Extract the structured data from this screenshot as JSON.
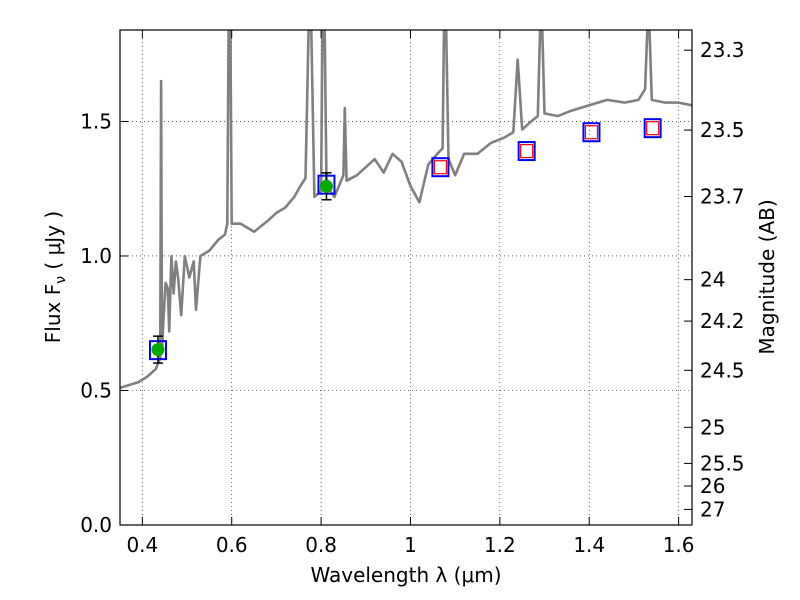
{
  "chart_data": {
    "type": "line",
    "title": "",
    "xlabel": "Wavelength  λ (μm)",
    "ylabel": "Flux  F",
    "ylabel_sub": "ν",
    "ylabel_unit": " ( μJy )",
    "y2label": "Magnitude (AB)",
    "xlim": [
      0.35,
      1.63
    ],
    "ylim": [
      0.0,
      1.84
    ],
    "grid": true,
    "x_ticks": [
      {
        "value": 0.4,
        "label": "0.4"
      },
      {
        "value": 0.6,
        "label": "0.6"
      },
      {
        "value": 0.8,
        "label": "0.8"
      },
      {
        "value": 1.0,
        "label": "1"
      },
      {
        "value": 1.2,
        "label": "1.2"
      },
      {
        "value": 1.4,
        "label": "1.4"
      },
      {
        "value": 1.6,
        "label": "1.6"
      }
    ],
    "y_ticks": [
      {
        "value": 0.0,
        "label": "0.0"
      },
      {
        "value": 0.5,
        "label": "0.5"
      },
      {
        "value": 1.0,
        "label": "1.0"
      },
      {
        "value": 1.5,
        "label": "1.5"
      }
    ],
    "y2_ticks": [
      {
        "flux": 1.765,
        "label": "23.3"
      },
      {
        "flux": 1.468,
        "label": "23.5"
      },
      {
        "flux": 1.221,
        "label": "23.7"
      },
      {
        "flux": 0.912,
        "label": "24"
      },
      {
        "flux": 0.758,
        "label": "24.2"
      },
      {
        "flux": 0.575,
        "label": "24.5"
      },
      {
        "flux": 0.363,
        "label": "25"
      },
      {
        "flux": 0.229,
        "label": "25.5"
      },
      {
        "flux": 0.145,
        "label": "26"
      },
      {
        "flux": 0.058,
        "label": "27"
      }
    ],
    "colors": {
      "spectrum": "#808080",
      "blue_box": "#0000ff",
      "red_box": "#ff0000",
      "green_point": "#00aa00",
      "error_bar": "#000000"
    },
    "spectrum": {
      "name": "",
      "points": [
        [
          0.35,
          0.51
        ],
        [
          0.37,
          0.52
        ],
        [
          0.39,
          0.53
        ],
        [
          0.41,
          0.55
        ],
        [
          0.43,
          0.58
        ],
        [
          0.44,
          0.62
        ],
        [
          0.442,
          1.65
        ],
        [
          0.444,
          0.65
        ],
        [
          0.447,
          0.75
        ],
        [
          0.452,
          0.9
        ],
        [
          0.457,
          0.88
        ],
        [
          0.46,
          0.72
        ],
        [
          0.465,
          1.0
        ],
        [
          0.47,
          0.86
        ],
        [
          0.475,
          0.98
        ],
        [
          0.48,
          0.92
        ],
        [
          0.487,
          0.78
        ],
        [
          0.495,
          1.0
        ],
        [
          0.505,
          0.92
        ],
        [
          0.515,
          0.98
        ],
        [
          0.52,
          0.8
        ],
        [
          0.53,
          1.0
        ],
        [
          0.55,
          1.02
        ],
        [
          0.57,
          1.06
        ],
        [
          0.585,
          1.08
        ],
        [
          0.59,
          1.12
        ],
        [
          0.593,
          1.84
        ],
        [
          0.597,
          1.84
        ],
        [
          0.6,
          1.12
        ],
        [
          0.62,
          1.12
        ],
        [
          0.65,
          1.09
        ],
        [
          0.68,
          1.13
        ],
        [
          0.7,
          1.16
        ],
        [
          0.72,
          1.18
        ],
        [
          0.74,
          1.22
        ],
        [
          0.75,
          1.25
        ],
        [
          0.765,
          1.29
        ],
        [
          0.772,
          1.84
        ],
        [
          0.778,
          1.84
        ],
        [
          0.785,
          1.22
        ],
        [
          0.8,
          1.24
        ],
        [
          0.803,
          1.84
        ],
        [
          0.808,
          1.84
        ],
        [
          0.812,
          1.26
        ],
        [
          0.83,
          1.22
        ],
        [
          0.85,
          1.3
        ],
        [
          0.853,
          1.55
        ],
        [
          0.857,
          1.28
        ],
        [
          0.88,
          1.3
        ],
        [
          0.9,
          1.33
        ],
        [
          0.92,
          1.36
        ],
        [
          0.94,
          1.31
        ],
        [
          0.96,
          1.38
        ],
        [
          0.98,
          1.35
        ],
        [
          1.0,
          1.26
        ],
        [
          1.02,
          1.2
        ],
        [
          1.04,
          1.34
        ],
        [
          1.06,
          1.38
        ],
        [
          1.072,
          1.4
        ],
        [
          1.075,
          1.84
        ],
        [
          1.08,
          1.84
        ],
        [
          1.085,
          1.36
        ],
        [
          1.1,
          1.3
        ],
        [
          1.12,
          1.38
        ],
        [
          1.15,
          1.38
        ],
        [
          1.18,
          1.42
        ],
        [
          1.21,
          1.44
        ],
        [
          1.23,
          1.46
        ],
        [
          1.24,
          1.73
        ],
        [
          1.25,
          1.47
        ],
        [
          1.27,
          1.5
        ],
        [
          1.285,
          1.52
        ],
        [
          1.29,
          1.84
        ],
        [
          1.295,
          1.84
        ],
        [
          1.3,
          1.53
        ],
        [
          1.33,
          1.52
        ],
        [
          1.36,
          1.54
        ],
        [
          1.4,
          1.56
        ],
        [
          1.44,
          1.58
        ],
        [
          1.48,
          1.57
        ],
        [
          1.51,
          1.58
        ],
        [
          1.525,
          1.62
        ],
        [
          1.53,
          1.84
        ],
        [
          1.535,
          1.84
        ],
        [
          1.54,
          1.58
        ],
        [
          1.57,
          1.57
        ],
        [
          1.6,
          1.57
        ],
        [
          1.63,
          1.56
        ]
      ]
    },
    "photometry": [
      {
        "x": 0.435,
        "y": 0.652,
        "err": 0.05,
        "marker": "green-dot"
      },
      {
        "x": 0.812,
        "y": 1.259,
        "err": 0.05,
        "marker": "green-dot"
      },
      {
        "x": 1.067,
        "y": 1.33,
        "err": 0.0,
        "marker": "none"
      },
      {
        "x": 1.26,
        "y": 1.39,
        "err": 0.0,
        "marker": "none"
      },
      {
        "x": 1.405,
        "y": 1.46,
        "err": 0.0,
        "marker": "none"
      },
      {
        "x": 1.542,
        "y": 1.475,
        "err": 0.0,
        "marker": "none"
      }
    ],
    "model_boxes": [
      {
        "x": 0.435,
        "y": 0.65,
        "red": false
      },
      {
        "x": 0.812,
        "y": 1.265,
        "red": false
      },
      {
        "x": 1.067,
        "y": 1.33,
        "red": true
      },
      {
        "x": 1.26,
        "y": 1.39,
        "red": true
      },
      {
        "x": 1.405,
        "y": 1.46,
        "red": true
      },
      {
        "x": 1.542,
        "y": 1.475,
        "red": true
      }
    ]
  }
}
